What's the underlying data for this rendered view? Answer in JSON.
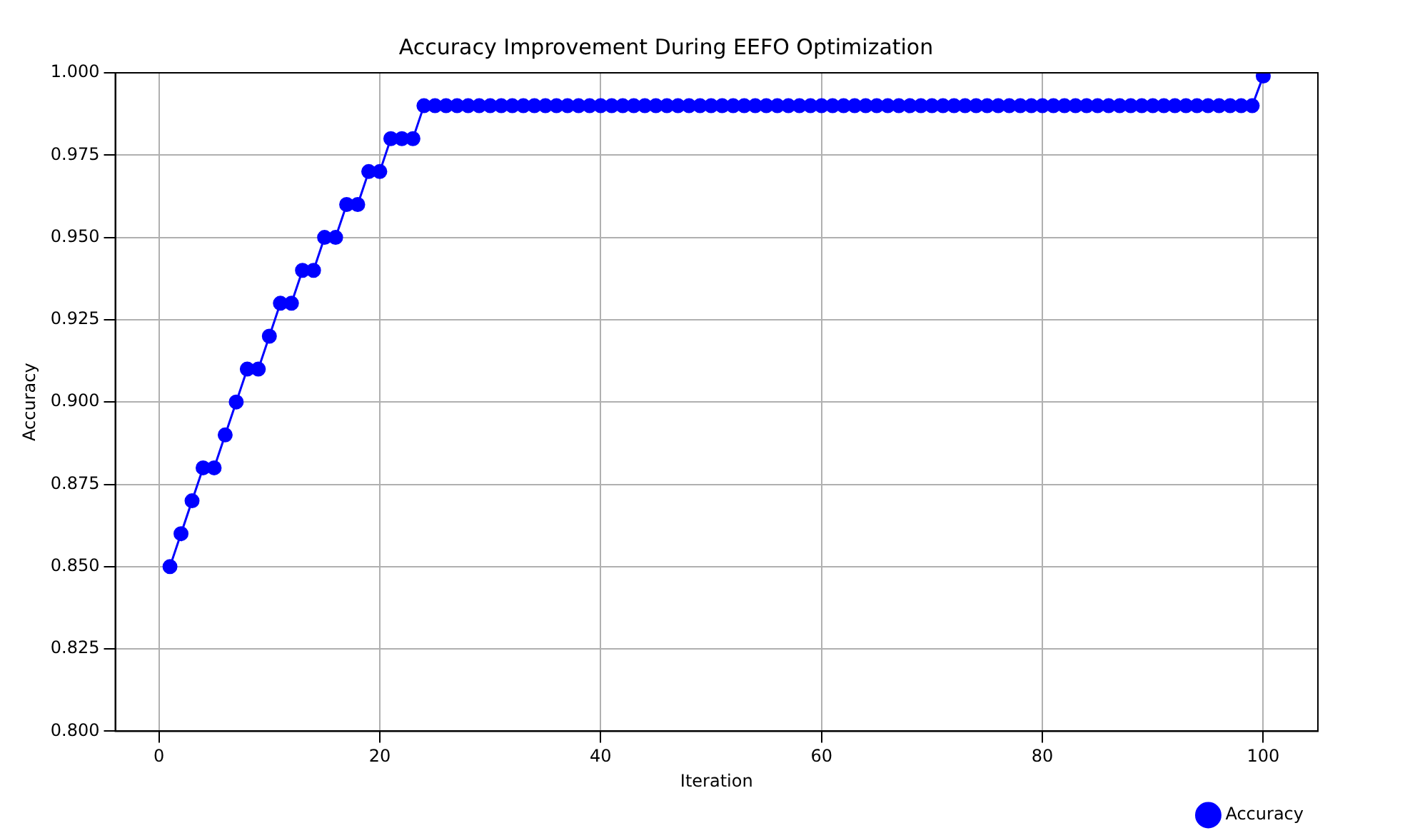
{
  "chart_data": {
    "type": "line",
    "title": "Accuracy Improvement During EEFO Optimization",
    "xlabel": "Iteration",
    "ylabel": "Accuracy",
    "x": [
      1,
      2,
      3,
      4,
      5,
      6,
      7,
      8,
      9,
      10,
      11,
      12,
      13,
      14,
      15,
      16,
      17,
      18,
      19,
      20,
      21,
      22,
      23,
      24,
      25,
      26,
      27,
      28,
      29,
      30,
      31,
      32,
      33,
      34,
      35,
      36,
      37,
      38,
      39,
      40,
      41,
      42,
      43,
      44,
      45,
      46,
      47,
      48,
      49,
      50,
      51,
      52,
      53,
      54,
      55,
      56,
      57,
      58,
      59,
      60,
      61,
      62,
      63,
      64,
      65,
      66,
      67,
      68,
      69,
      70,
      71,
      72,
      73,
      74,
      75,
      76,
      77,
      78,
      79,
      80,
      81,
      82,
      83,
      84,
      85,
      86,
      87,
      88,
      89,
      90,
      91,
      92,
      93,
      94,
      95,
      96,
      97,
      98,
      99,
      100
    ],
    "series": [
      {
        "name": "Accuracy",
        "color": "#0000ff",
        "values": [
          0.85,
          0.86,
          0.87,
          0.88,
          0.88,
          0.89,
          0.9,
          0.91,
          0.91,
          0.92,
          0.93,
          0.93,
          0.94,
          0.94,
          0.95,
          0.95,
          0.96,
          0.96,
          0.97,
          0.97,
          0.98,
          0.98,
          0.98,
          0.99,
          0.99,
          0.99,
          0.99,
          0.99,
          0.99,
          0.99,
          0.99,
          0.99,
          0.99,
          0.99,
          0.99,
          0.99,
          0.99,
          0.99,
          0.99,
          0.99,
          0.99,
          0.99,
          0.99,
          0.99,
          0.99,
          0.99,
          0.99,
          0.99,
          0.99,
          0.99,
          0.99,
          0.99,
          0.99,
          0.99,
          0.99,
          0.99,
          0.99,
          0.99,
          0.99,
          0.99,
          0.99,
          0.99,
          0.99,
          0.99,
          0.99,
          0.99,
          0.99,
          0.99,
          0.99,
          0.99,
          0.99,
          0.99,
          0.99,
          0.99,
          0.99,
          0.99,
          0.99,
          0.99,
          0.99,
          0.99,
          0.99,
          0.99,
          0.99,
          0.99,
          0.99,
          0.99,
          0.99,
          0.99,
          0.99,
          0.99,
          0.99,
          0.99,
          0.99,
          0.99,
          0.99,
          0.99,
          0.99,
          0.99,
          0.99,
          0.999
        ]
      }
    ],
    "xlim": [
      -3.95,
      104.95
    ],
    "xticks": [
      0,
      20,
      40,
      60,
      80,
      100
    ],
    "ylim": [
      0.8,
      1.0
    ],
    "yticks": [
      {
        "value": 0.8,
        "label": "0.800"
      },
      {
        "value": 0.825,
        "label": "0.825"
      },
      {
        "value": 0.85,
        "label": "0.850"
      },
      {
        "value": 0.875,
        "label": "0.875"
      },
      {
        "value": 0.9,
        "label": "0.900"
      },
      {
        "value": 0.925,
        "label": "0.925"
      },
      {
        "value": 0.95,
        "label": "0.950"
      },
      {
        "value": 0.975,
        "label": "0.975"
      },
      {
        "value": 1.0,
        "label": "1.000"
      }
    ],
    "grid": true,
    "legend": "bottom right",
    "marker": "circle",
    "line_style": "solid"
  }
}
